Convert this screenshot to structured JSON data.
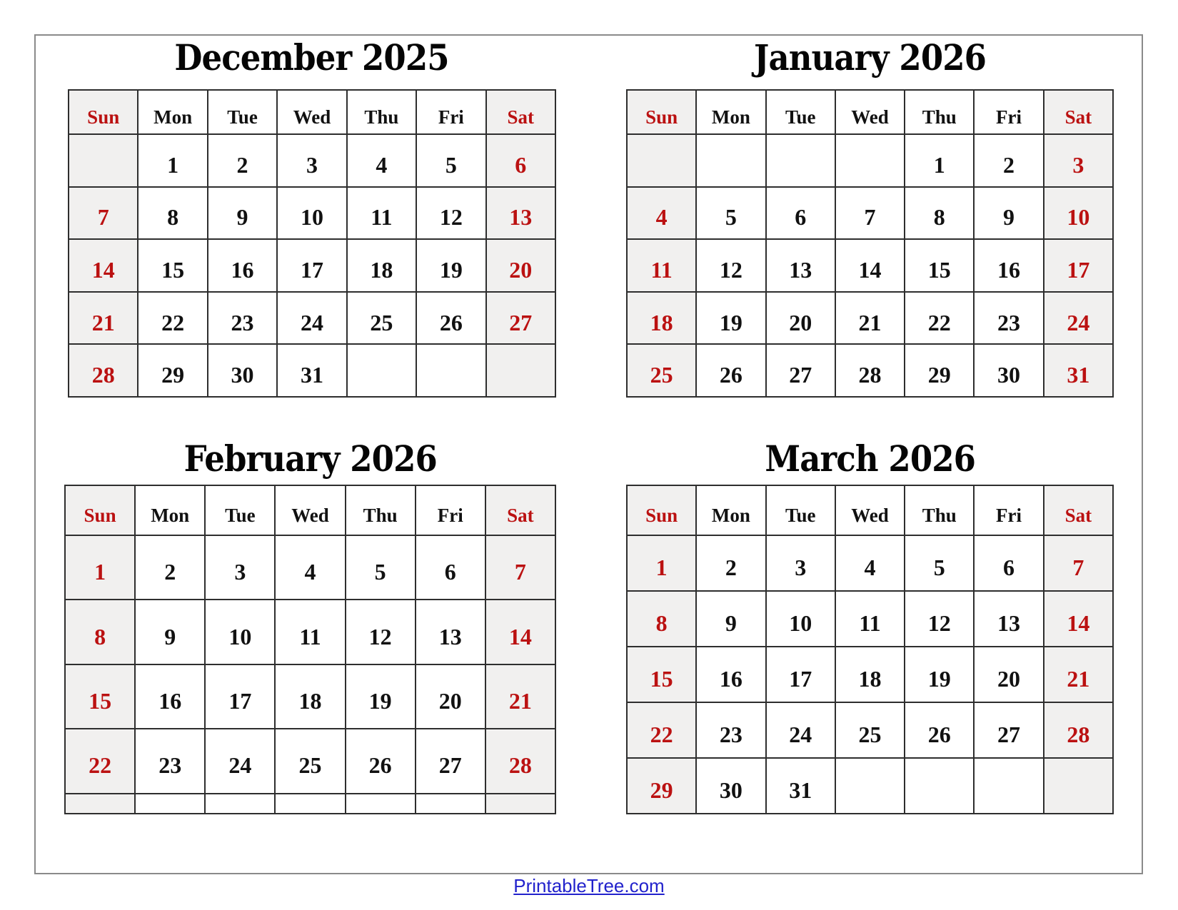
{
  "page": {
    "background_color": "#ffffff",
    "frame_border_color": "#8a8a8a"
  },
  "colors": {
    "weekend_text": "#bb1111",
    "weekday_text": "#111111",
    "weekend_bg": "#f1f0ef",
    "grid_border": "#2e2e2e",
    "link_blue": "#2222cc"
  },
  "day_headers": [
    "Sun",
    "Mon",
    "Tue",
    "Wed",
    "Thu",
    "Fri",
    "Sat"
  ],
  "months": [
    {
      "title": "December 2025",
      "weeks": [
        [
          "",
          "1",
          "2",
          "3",
          "4",
          "5",
          "6"
        ],
        [
          "7",
          "8",
          "9",
          "10",
          "11",
          "12",
          "13"
        ],
        [
          "14",
          "15",
          "16",
          "17",
          "18",
          "19",
          "20"
        ],
        [
          "21",
          "22",
          "23",
          "24",
          "25",
          "26",
          "27"
        ],
        [
          "28",
          "29",
          "30",
          "31",
          "",
          "",
          ""
        ]
      ]
    },
    {
      "title": "January 2026",
      "weeks": [
        [
          "",
          "",
          "",
          "",
          "1",
          "2",
          "3"
        ],
        [
          "4",
          "5",
          "6",
          "7",
          "8",
          "9",
          "10"
        ],
        [
          "11",
          "12",
          "13",
          "14",
          "15",
          "16",
          "17"
        ],
        [
          "18",
          "19",
          "20",
          "21",
          "22",
          "23",
          "24"
        ],
        [
          "25",
          "26",
          "27",
          "28",
          "29",
          "30",
          "31"
        ]
      ]
    },
    {
      "title": "February 2026",
      "weeks": [
        [
          "1",
          "2",
          "3",
          "4",
          "5",
          "6",
          "7"
        ],
        [
          "8",
          "9",
          "10",
          "11",
          "12",
          "13",
          "14"
        ],
        [
          "15",
          "16",
          "17",
          "18",
          "19",
          "20",
          "21"
        ],
        [
          "22",
          "23",
          "24",
          "25",
          "26",
          "27",
          "28"
        ],
        [
          "",
          "",
          "",
          "",
          "",
          "",
          ""
        ]
      ]
    },
    {
      "title": "March 2026",
      "weeks": [
        [
          "1",
          "2",
          "3",
          "4",
          "5",
          "6",
          "7"
        ],
        [
          "8",
          "9",
          "10",
          "11",
          "12",
          "13",
          "14"
        ],
        [
          "15",
          "16",
          "17",
          "18",
          "19",
          "20",
          "21"
        ],
        [
          "22",
          "23",
          "24",
          "25",
          "26",
          "27",
          "28"
        ],
        [
          "29",
          "30",
          "31",
          "",
          "",
          "",
          ""
        ]
      ]
    }
  ],
  "footer": {
    "link_label": "PrintableTree.com"
  }
}
